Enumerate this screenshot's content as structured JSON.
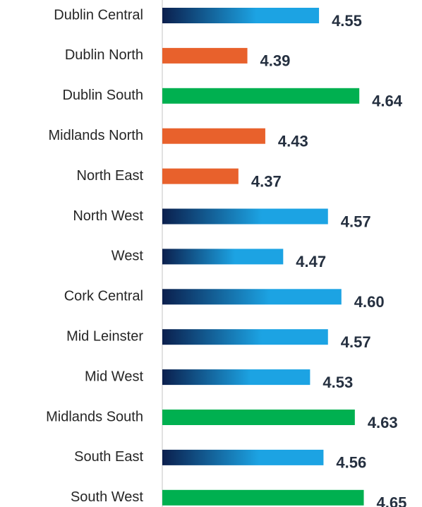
{
  "chart_data": {
    "type": "barh",
    "categories": [
      "Dublin Central",
      "Dublin North",
      "Dublin South",
      "Midlands North",
      "North East",
      "North West",
      "West",
      "Cork Central",
      "Mid Leinster",
      "Mid West",
      "Midlands South",
      "South East",
      "South West"
    ],
    "values": [
      4.55,
      4.39,
      4.64,
      4.43,
      4.37,
      4.57,
      4.47,
      4.6,
      4.57,
      4.53,
      4.63,
      4.56,
      4.65
    ],
    "value_labels": [
      "4.55",
      "4.39",
      "4.64",
      "4.43",
      "4.37",
      "4.57",
      "4.47",
      "4.60",
      "4.57",
      "4.53",
      "4.63",
      "4.56",
      "4.65"
    ],
    "colors": [
      [
        "#0b1f4d",
        "#1ca3e3"
      ],
      [
        "#e8612c",
        "#e8612c"
      ],
      [
        "#00b050",
        "#00b050"
      ],
      [
        "#e8612c",
        "#e8612c"
      ],
      [
        "#e8612c",
        "#e8612c"
      ],
      [
        "#0b1f4d",
        "#1ca3e3"
      ],
      [
        "#0b1f4d",
        "#1ca3e3"
      ],
      [
        "#0b1f4d",
        "#1ca3e3"
      ],
      [
        "#0b1f4d",
        "#1ca3e3"
      ],
      [
        "#0b1f4d",
        "#1ca3e3"
      ],
      [
        "#00b050",
        "#00b050"
      ],
      [
        "#0b1f4d",
        "#1ca3e3"
      ],
      [
        "#00b050",
        "#00b050"
      ]
    ],
    "xlim": [
      4.2,
      4.78
    ]
  }
}
